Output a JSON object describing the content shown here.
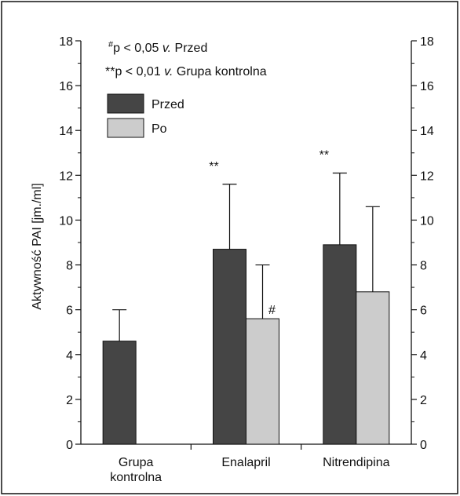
{
  "chart_data": {
    "type": "bar",
    "categories": [
      "Grupa\nkontrolna",
      "Enalapril",
      "Nitrendipina"
    ],
    "series": [
      {
        "name": "Przed",
        "color": "#454545",
        "values": [
          4.6,
          8.7,
          8.9
        ],
        "errors": [
          1.4,
          2.9,
          3.2
        ],
        "annotations": [
          "",
          "**",
          "**"
        ]
      },
      {
        "name": "Po",
        "color": "#cccccc",
        "values": [
          0,
          5.6,
          6.8
        ],
        "errors": [
          0,
          2.4,
          3.8
        ],
        "annotations": [
          "",
          "#",
          ""
        ]
      }
    ],
    "ylabel": "Aktywność PAI [jm./ml]",
    "ylim": [
      0,
      18
    ],
    "yticks": [
      0,
      2,
      4,
      6,
      8,
      10,
      12,
      14,
      16,
      18
    ],
    "legend_position": "top-left",
    "notes": [
      {
        "marker": "#",
        "text": "p < 0,05 ",
        "italic": "v.",
        "rest": " Przed"
      },
      {
        "marker": "**",
        "text": "p < 0,01 ",
        "italic": "v.",
        "rest": " Grupa kontrolna"
      }
    ],
    "grid": false
  }
}
